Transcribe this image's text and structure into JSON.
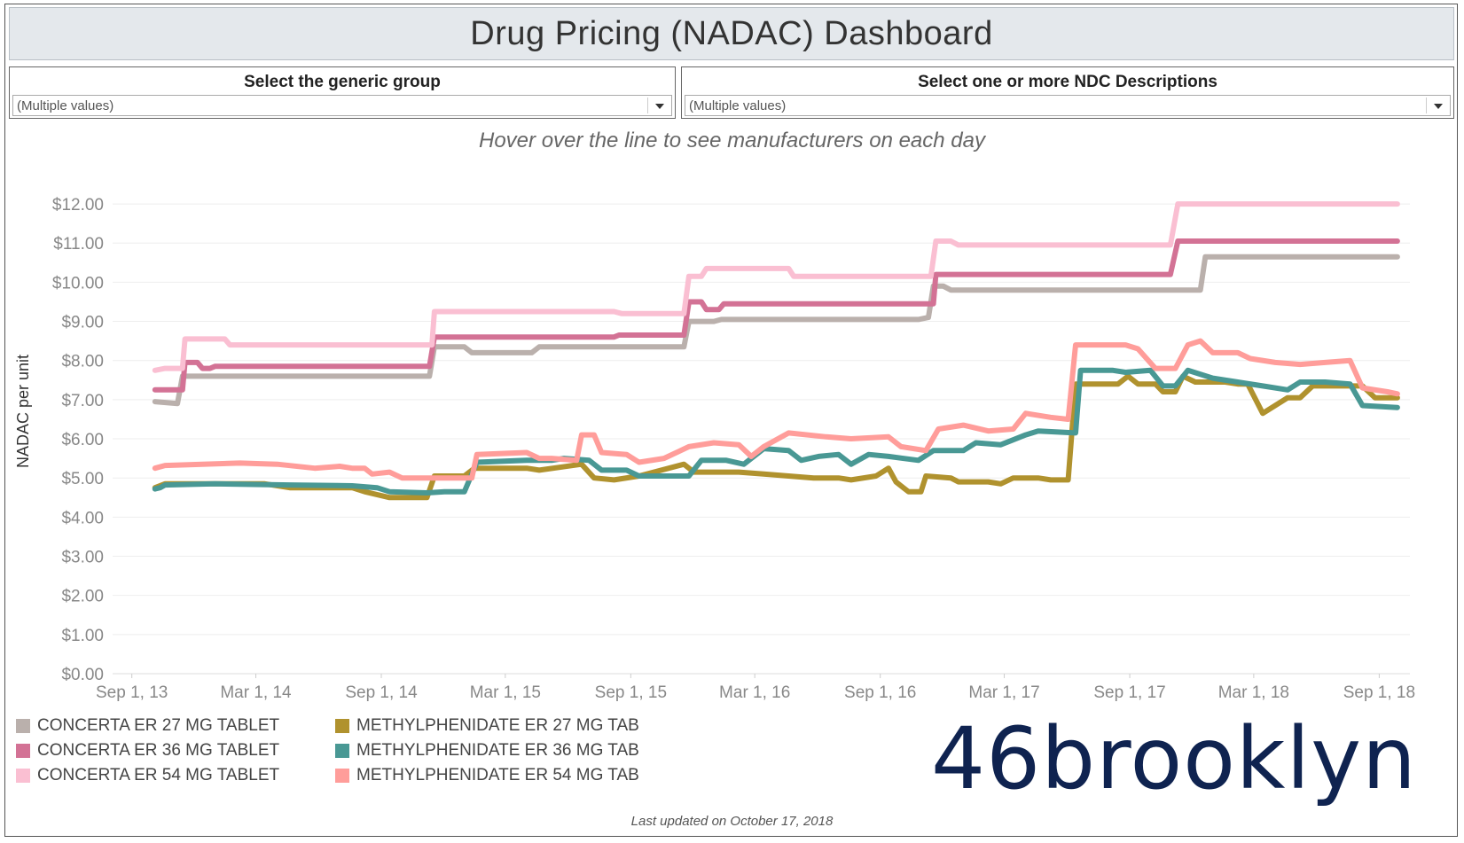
{
  "title": "Drug Pricing (NADAC) Dashboard",
  "filters": [
    {
      "label": "Select the generic group",
      "value": "(Multiple values)"
    },
    {
      "label": "Select one or more NDC Descriptions",
      "value": "(Multiple values)"
    }
  ],
  "subtitle": "Hover over the line to see manufacturers on each day",
  "footer": "Last updated on October 17, 2018",
  "logo": {
    "text": "46brooklyn",
    "color": "#0f2350"
  },
  "colors": {
    "grid": "#eeeeee",
    "axis_text": "#888888"
  },
  "chart_data": {
    "type": "line",
    "ylabel": "NADAC per unit",
    "xlabel": "",
    "ylim": [
      0,
      12.5
    ],
    "yticks": [
      0,
      1,
      2,
      3,
      4,
      5,
      6,
      7,
      8,
      9,
      10,
      11,
      12
    ],
    "ytick_labels": [
      "$0.00",
      "$1.00",
      "$2.00",
      "$3.00",
      "$4.00",
      "$5.00",
      "$6.00",
      "$7.00",
      "$8.00",
      "$9.00",
      "$10.00",
      "$11.00",
      "$12.00"
    ],
    "xlim": [
      2013.59,
      2018.79
    ],
    "xticks": [
      2013.667,
      2014.164,
      2014.667,
      2015.164,
      2015.667,
      2016.164,
      2016.667,
      2017.164,
      2017.667,
      2018.164,
      2018.667
    ],
    "xtick_labels": [
      "Sep 1, 13",
      "Mar 1, 14",
      "Sep 1, 14",
      "Mar 1, 15",
      "Sep 1, 15",
      "Mar 1, 16",
      "Sep 1, 16",
      "Mar 1, 17",
      "Sep 1, 17",
      "Mar 1, 18",
      "Sep 1, 18"
    ],
    "series": [
      {
        "name": "CONCERTA ER 27 MG TABLET",
        "color": "#bab0ac",
        "points": [
          [
            2013.76,
            6.95
          ],
          [
            2013.85,
            6.9
          ],
          [
            2013.87,
            7.6
          ],
          [
            2014.86,
            7.6
          ],
          [
            2014.88,
            8.35
          ],
          [
            2015.0,
            8.35
          ],
          [
            2015.03,
            8.2
          ],
          [
            2015.27,
            8.2
          ],
          [
            2015.3,
            8.35
          ],
          [
            2015.88,
            8.35
          ],
          [
            2015.9,
            9.0
          ],
          [
            2016.0,
            9.0
          ],
          [
            2016.03,
            9.05
          ],
          [
            2016.82,
            9.05
          ],
          [
            2016.86,
            9.1
          ],
          [
            2016.88,
            9.9
          ],
          [
            2016.92,
            9.9
          ],
          [
            2016.95,
            9.8
          ],
          [
            2017.82,
            9.8
          ],
          [
            2017.95,
            9.8
          ],
          [
            2017.97,
            10.65
          ],
          [
            2018.74,
            10.65
          ]
        ]
      },
      {
        "name": "CONCERTA ER 36 MG TABLET",
        "color": "#d37295",
        "points": [
          [
            2013.76,
            7.25
          ],
          [
            2013.87,
            7.25
          ],
          [
            2013.88,
            7.95
          ],
          [
            2013.93,
            7.95
          ],
          [
            2013.95,
            7.8
          ],
          [
            2013.98,
            7.8
          ],
          [
            2014.0,
            7.85
          ],
          [
            2014.86,
            7.85
          ],
          [
            2014.88,
            8.6
          ],
          [
            2015.6,
            8.6
          ],
          [
            2015.62,
            8.65
          ],
          [
            2015.88,
            8.65
          ],
          [
            2015.9,
            9.5
          ],
          [
            2015.95,
            9.5
          ],
          [
            2015.97,
            9.3
          ],
          [
            2016.02,
            9.3
          ],
          [
            2016.04,
            9.45
          ],
          [
            2016.88,
            9.45
          ],
          [
            2016.89,
            10.2
          ],
          [
            2017.83,
            10.2
          ],
          [
            2017.86,
            11.05
          ],
          [
            2018.74,
            11.05
          ]
        ]
      },
      {
        "name": "CONCERTA ER 54 MG TABLET",
        "color": "#fabfd2",
        "points": [
          [
            2013.76,
            7.75
          ],
          [
            2013.8,
            7.8
          ],
          [
            2013.87,
            7.8
          ],
          [
            2013.88,
            8.55
          ],
          [
            2014.04,
            8.55
          ],
          [
            2014.06,
            8.4
          ],
          [
            2014.87,
            8.4
          ],
          [
            2014.88,
            9.25
          ],
          [
            2015.6,
            9.25
          ],
          [
            2015.63,
            9.2
          ],
          [
            2015.88,
            9.2
          ],
          [
            2015.9,
            10.15
          ],
          [
            2015.95,
            10.15
          ],
          [
            2015.97,
            10.35
          ],
          [
            2016.3,
            10.35
          ],
          [
            2016.32,
            10.15
          ],
          [
            2016.87,
            10.15
          ],
          [
            2016.89,
            11.05
          ],
          [
            2016.95,
            11.05
          ],
          [
            2016.98,
            10.95
          ],
          [
            2017.83,
            10.95
          ],
          [
            2017.86,
            12.0
          ],
          [
            2018.74,
            12.0
          ]
        ]
      },
      {
        "name": "METHYLPHENIDATE ER 27 MG TAB",
        "color": "#b0922e",
        "points": [
          [
            2013.76,
            4.75
          ],
          [
            2013.8,
            4.85
          ],
          [
            2014.2,
            4.85
          ],
          [
            2014.3,
            4.75
          ],
          [
            2014.55,
            4.75
          ],
          [
            2014.6,
            4.65
          ],
          [
            2014.7,
            4.5
          ],
          [
            2014.85,
            4.5
          ],
          [
            2014.88,
            5.05
          ],
          [
            2015.0,
            5.05
          ],
          [
            2015.04,
            5.25
          ],
          [
            2015.25,
            5.25
          ],
          [
            2015.3,
            5.2
          ],
          [
            2015.47,
            5.35
          ],
          [
            2015.52,
            5.0
          ],
          [
            2015.6,
            4.95
          ],
          [
            2015.7,
            5.05
          ],
          [
            2015.88,
            5.35
          ],
          [
            2015.92,
            5.15
          ],
          [
            2016.0,
            5.15
          ],
          [
            2016.1,
            5.15
          ],
          [
            2016.2,
            5.1
          ],
          [
            2016.3,
            5.05
          ],
          [
            2016.4,
            5.0
          ],
          [
            2016.5,
            5.0
          ],
          [
            2016.55,
            4.95
          ],
          [
            2016.65,
            5.05
          ],
          [
            2016.7,
            5.25
          ],
          [
            2016.73,
            4.9
          ],
          [
            2016.78,
            4.65
          ],
          [
            2016.83,
            4.65
          ],
          [
            2016.85,
            5.05
          ],
          [
            2016.95,
            5.0
          ],
          [
            2016.98,
            4.9
          ],
          [
            2017.1,
            4.9
          ],
          [
            2017.15,
            4.85
          ],
          [
            2017.2,
            5.0
          ],
          [
            2017.3,
            5.0
          ],
          [
            2017.35,
            4.95
          ],
          [
            2017.42,
            4.95
          ],
          [
            2017.45,
            7.4
          ],
          [
            2017.62,
            7.4
          ],
          [
            2017.66,
            7.6
          ],
          [
            2017.7,
            7.4
          ],
          [
            2017.77,
            7.4
          ],
          [
            2017.8,
            7.2
          ],
          [
            2017.85,
            7.2
          ],
          [
            2017.88,
            7.6
          ],
          [
            2017.93,
            7.45
          ],
          [
            2018.05,
            7.45
          ],
          [
            2018.1,
            7.4
          ],
          [
            2018.14,
            7.4
          ],
          [
            2018.2,
            6.65
          ],
          [
            2018.3,
            7.05
          ],
          [
            2018.35,
            7.05
          ],
          [
            2018.4,
            7.35
          ],
          [
            2018.6,
            7.35
          ],
          [
            2018.65,
            7.05
          ],
          [
            2018.74,
            7.05
          ]
        ]
      },
      {
        "name": "METHYLPHENIDATE ER 36 MG TAB",
        "color": "#499894",
        "points": [
          [
            2013.76,
            4.72
          ],
          [
            2013.78,
            4.75
          ],
          [
            2013.8,
            4.82
          ],
          [
            2014.0,
            4.85
          ],
          [
            2014.3,
            4.82
          ],
          [
            2014.55,
            4.8
          ],
          [
            2014.65,
            4.75
          ],
          [
            2014.7,
            4.65
          ],
          [
            2014.85,
            4.62
          ],
          [
            2014.92,
            4.65
          ],
          [
            2015.0,
            4.65
          ],
          [
            2015.05,
            5.4
          ],
          [
            2015.25,
            5.45
          ],
          [
            2015.35,
            5.45
          ],
          [
            2015.4,
            5.5
          ],
          [
            2015.5,
            5.45
          ],
          [
            2015.55,
            5.2
          ],
          [
            2015.65,
            5.2
          ],
          [
            2015.7,
            5.05
          ],
          [
            2015.9,
            5.05
          ],
          [
            2015.95,
            5.45
          ],
          [
            2016.05,
            5.45
          ],
          [
            2016.12,
            5.35
          ],
          [
            2016.2,
            5.75
          ],
          [
            2016.3,
            5.7
          ],
          [
            2016.35,
            5.45
          ],
          [
            2016.42,
            5.55
          ],
          [
            2016.5,
            5.6
          ],
          [
            2016.55,
            5.35
          ],
          [
            2016.62,
            5.6
          ],
          [
            2016.7,
            5.55
          ],
          [
            2016.82,
            5.45
          ],
          [
            2016.88,
            5.7
          ],
          [
            2017.0,
            5.7
          ],
          [
            2017.05,
            5.9
          ],
          [
            2017.15,
            5.85
          ],
          [
            2017.25,
            6.1
          ],
          [
            2017.3,
            6.2
          ],
          [
            2017.45,
            6.15
          ],
          [
            2017.47,
            7.75
          ],
          [
            2017.6,
            7.75
          ],
          [
            2017.65,
            7.7
          ],
          [
            2017.75,
            7.75
          ],
          [
            2017.8,
            7.35
          ],
          [
            2017.85,
            7.35
          ],
          [
            2017.9,
            7.75
          ],
          [
            2018.0,
            7.55
          ],
          [
            2018.1,
            7.45
          ],
          [
            2018.2,
            7.35
          ],
          [
            2018.3,
            7.25
          ],
          [
            2018.35,
            7.45
          ],
          [
            2018.45,
            7.45
          ],
          [
            2018.55,
            7.4
          ],
          [
            2018.6,
            6.85
          ],
          [
            2018.74,
            6.8
          ]
        ]
      },
      {
        "name": "METHYLPHENIDATE ER 54 MG TAB",
        "color": "#ff9d9a",
        "points": [
          [
            2013.76,
            5.25
          ],
          [
            2013.8,
            5.32
          ],
          [
            2014.1,
            5.38
          ],
          [
            2014.25,
            5.35
          ],
          [
            2014.4,
            5.25
          ],
          [
            2014.5,
            5.3
          ],
          [
            2014.55,
            5.25
          ],
          [
            2014.6,
            5.25
          ],
          [
            2014.63,
            5.1
          ],
          [
            2014.7,
            5.15
          ],
          [
            2014.75,
            5.0
          ],
          [
            2014.9,
            5.0
          ],
          [
            2015.03,
            5.0
          ],
          [
            2015.05,
            5.6
          ],
          [
            2015.25,
            5.65
          ],
          [
            2015.3,
            5.5
          ],
          [
            2015.35,
            5.5
          ],
          [
            2015.45,
            5.45
          ],
          [
            2015.47,
            6.1
          ],
          [
            2015.52,
            6.1
          ],
          [
            2015.55,
            5.65
          ],
          [
            2015.65,
            5.6
          ],
          [
            2015.7,
            5.4
          ],
          [
            2015.8,
            5.5
          ],
          [
            2015.9,
            5.8
          ],
          [
            2016.0,
            5.9
          ],
          [
            2016.1,
            5.85
          ],
          [
            2016.15,
            5.55
          ],
          [
            2016.2,
            5.8
          ],
          [
            2016.3,
            6.15
          ],
          [
            2016.45,
            6.05
          ],
          [
            2016.55,
            6.0
          ],
          [
            2016.7,
            6.05
          ],
          [
            2016.75,
            5.8
          ],
          [
            2016.85,
            5.7
          ],
          [
            2016.9,
            6.25
          ],
          [
            2017.0,
            6.35
          ],
          [
            2017.1,
            6.2
          ],
          [
            2017.2,
            6.25
          ],
          [
            2017.25,
            6.65
          ],
          [
            2017.35,
            6.55
          ],
          [
            2017.42,
            6.5
          ],
          [
            2017.45,
            8.4
          ],
          [
            2017.65,
            8.4
          ],
          [
            2017.7,
            8.3
          ],
          [
            2017.77,
            7.8
          ],
          [
            2017.85,
            7.8
          ],
          [
            2017.9,
            8.4
          ],
          [
            2017.95,
            8.5
          ],
          [
            2018.0,
            8.2
          ],
          [
            2018.1,
            8.2
          ],
          [
            2018.15,
            8.05
          ],
          [
            2018.25,
            7.95
          ],
          [
            2018.35,
            7.9
          ],
          [
            2018.45,
            7.95
          ],
          [
            2018.55,
            8.0
          ],
          [
            2018.6,
            7.3
          ],
          [
            2018.7,
            7.2
          ],
          [
            2018.74,
            7.15
          ]
        ]
      }
    ]
  }
}
